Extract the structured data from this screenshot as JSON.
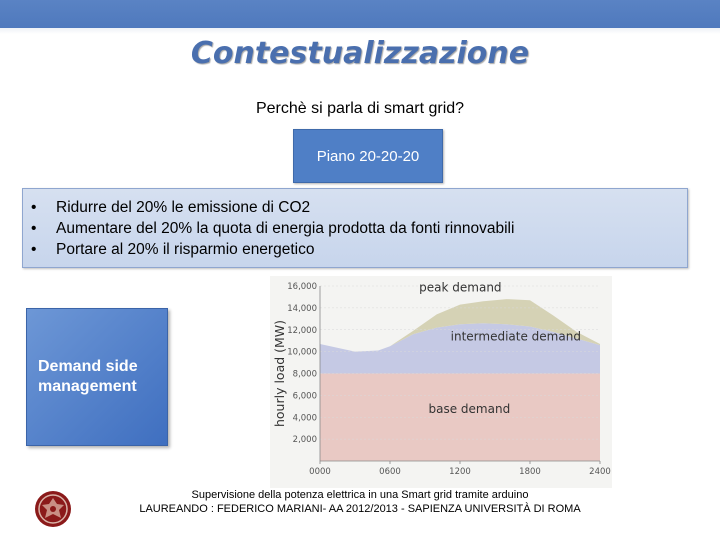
{
  "slide": {
    "title": "Contestualizzazione",
    "subtitle": "Perchè si parla di smart grid?",
    "plan_label": "Piano 20-20-20",
    "goals": [
      "Ridurre del 20% le emissione di CO2",
      "Aumentare del 20% la quota di energia prodotta da fonti rinnovabili",
      "Portare al 20% il risparmio energetico"
    ],
    "bullet_char": "•",
    "dsm_label": "Demand side management",
    "footer_line1": "Supervisione della potenza elettrica in una Smart grid tramite arduino",
    "footer_line2": "LAUREANDO : FEDERICO MARIANI-  AA 2012/2013  - SAPIENZA UNIVERSITÀ DI ROMA",
    "logo_icon": "university-seal-icon"
  },
  "colors": {
    "header_band": "#4f79bd",
    "title": "#4a6fae",
    "plan_box": "#4f7fc6",
    "goals_box": "#c7d5ec",
    "dsm_box": "#4f7fc6",
    "base_demand": "#e9c9c4",
    "intermediate_demand": "#c5c9e4",
    "peak_demand": "#d5d2b5",
    "logo": "#8b1a1a"
  },
  "chart_data": {
    "type": "area",
    "ylabel": "hourly load (MW)",
    "xlabel": "",
    "x_ticks": [
      "0000",
      "0600",
      "1200",
      "1800",
      "2400"
    ],
    "y_ticks": [
      "2,000",
      "4,000",
      "6,000",
      "8,000",
      "10,000",
      "12,000",
      "14,000",
      "16,000"
    ],
    "xlim": [
      0,
      24
    ],
    "ylim": [
      0,
      16000
    ],
    "grid": true,
    "x": [
      0,
      3,
      5,
      6,
      8,
      10,
      12,
      14,
      16,
      18,
      20,
      22,
      24
    ],
    "series": [
      {
        "name": "base demand",
        "values": [
          8000,
          8000,
          8000,
          8000,
          8000,
          8000,
          8000,
          8000,
          8000,
          8000,
          8000,
          8000,
          8000
        ]
      },
      {
        "name": "intermediate demand",
        "values": [
          10700,
          10000,
          10100,
          10500,
          11600,
          12200,
          12500,
          12600,
          12500,
          12300,
          11800,
          11200,
          10600
        ]
      },
      {
        "name": "peak demand",
        "values": [
          10700,
          10000,
          10100,
          10500,
          11900,
          13400,
          14300,
          14600,
          14800,
          14700,
          13300,
          11800,
          10700
        ]
      }
    ]
  }
}
